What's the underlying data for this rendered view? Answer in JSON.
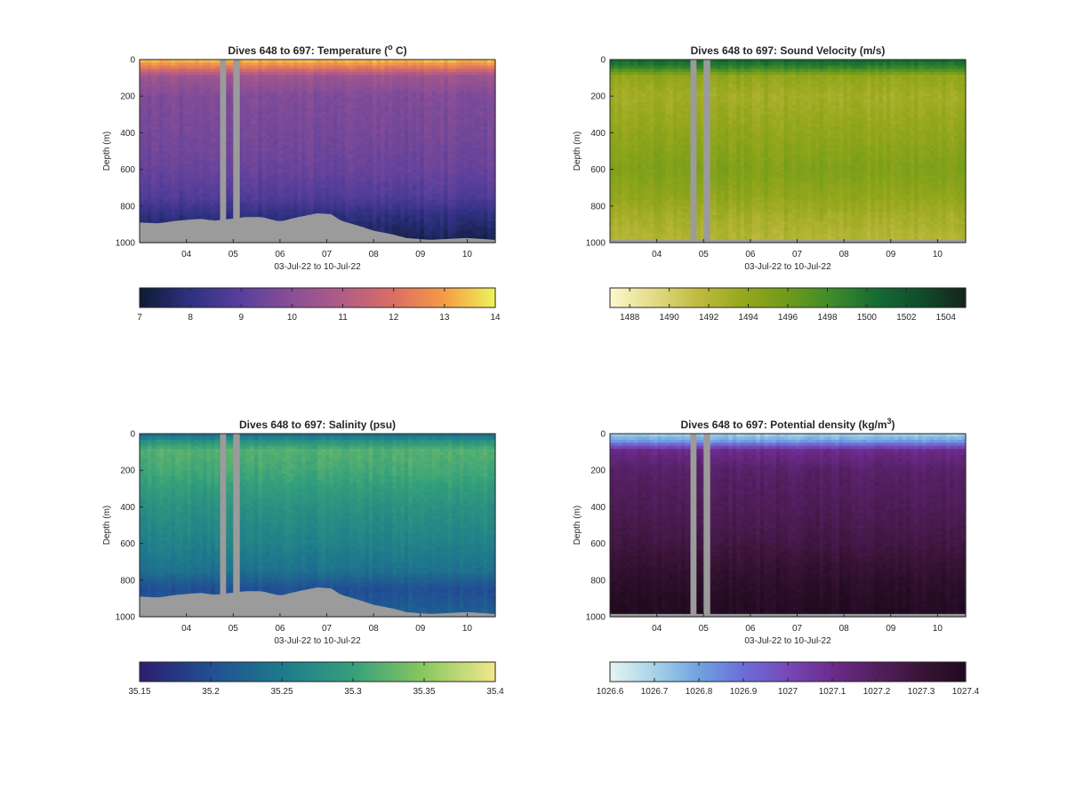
{
  "chart_data": [
    {
      "type": "heatmap",
      "title": "Dives 648 to 697: Temperature (",
      "title_sup": "o",
      "title_tail": " C)",
      "xlabel": "03-Jul-22 to 10-Jul-22",
      "ylabel": "Depth (m)",
      "x_ticks": [
        "04",
        "05",
        "06",
        "07",
        "08",
        "09",
        "10"
      ],
      "x_range": [
        3.0,
        10.6
      ],
      "y_ticks": [
        "0",
        "200",
        "400",
        "600",
        "800",
        "1000"
      ],
      "ylim": [
        0,
        1000
      ],
      "y_reversed": true,
      "gaps_x": [
        [
          4.72,
          4.85
        ],
        [
          5.0,
          5.14
        ]
      ],
      "bottom_depth": [
        [
          3.0,
          890
        ],
        [
          3.4,
          895
        ],
        [
          3.8,
          880
        ],
        [
          4.3,
          870
        ],
        [
          4.6,
          880
        ],
        [
          5.3,
          860
        ],
        [
          5.6,
          860
        ],
        [
          6.0,
          885
        ],
        [
          6.4,
          860
        ],
        [
          6.8,
          840
        ],
        [
          7.1,
          845
        ],
        [
          7.3,
          880
        ],
        [
          7.7,
          910
        ],
        [
          8.0,
          935
        ],
        [
          8.4,
          955
        ],
        [
          8.7,
          975
        ],
        [
          9.2,
          985
        ],
        [
          9.6,
          980
        ],
        [
          10.0,
          975
        ],
        [
          10.6,
          985
        ]
      ],
      "colorbar": {
        "ticks": [
          "7",
          "8",
          "9",
          "10",
          "11",
          "12",
          "13",
          "14"
        ],
        "range": [
          7,
          14
        ],
        "colors": [
          "#0d1b33",
          "#2f3182",
          "#5a3f9c",
          "#8a4f96",
          "#b25c86",
          "#db6e63",
          "#f59c45",
          "#eef45c"
        ]
      },
      "profile": [
        [
          0,
          13.5
        ],
        [
          40,
          12.4
        ],
        [
          90,
          10.5
        ],
        [
          200,
          9.8
        ],
        [
          400,
          9.6
        ],
        [
          600,
          9.3
        ],
        [
          750,
          8.8
        ],
        [
          850,
          8.0
        ],
        [
          1000,
          7.3
        ]
      ]
    },
    {
      "type": "heatmap",
      "title": "Dives 648 to 697: Sound Velocity (m/s)",
      "xlabel": "03-Jul-22 to 10-Jul-22",
      "ylabel": "Depth (m)",
      "x_ticks": [
        "04",
        "05",
        "06",
        "07",
        "08",
        "09",
        "10"
      ],
      "x_range": [
        3.0,
        10.6
      ],
      "y_ticks": [
        "0",
        "200",
        "400",
        "600",
        "800",
        "1000"
      ],
      "ylim": [
        0,
        1000
      ],
      "y_reversed": true,
      "gaps_x": [
        [
          4.72,
          4.85
        ],
        [
          5.0,
          5.14
        ]
      ],
      "bottom_depth": [
        [
          3.0,
          985
        ],
        [
          10.6,
          985
        ]
      ],
      "colorbar": {
        "ticks": [
          "1488",
          "1490",
          "1492",
          "1494",
          "1496",
          "1498",
          "1500",
          "1502",
          "1504"
        ],
        "range": [
          1487,
          1505
        ],
        "colors": [
          "#fdf8cf",
          "#e2da84",
          "#bfba40",
          "#96a71c",
          "#6e9b1a",
          "#3d8a2a",
          "#166b33",
          "#0f4d2a",
          "#14241a"
        ]
      },
      "profile": [
        [
          0,
          1501
        ],
        [
          40,
          1499
        ],
        [
          90,
          1494
        ],
        [
          200,
          1493
        ],
        [
          400,
          1494
        ],
        [
          600,
          1495
        ],
        [
          750,
          1494
        ],
        [
          850,
          1493
        ],
        [
          1000,
          1492
        ]
      ]
    },
    {
      "type": "heatmap",
      "title": "Dives 648 to 697: Salinity (psu)",
      "xlabel": "03-Jul-22 to 10-Jul-22",
      "ylabel": "Depth (m)",
      "x_ticks": [
        "04",
        "05",
        "06",
        "07",
        "08",
        "09",
        "10"
      ],
      "x_range": [
        3.0,
        10.6
      ],
      "y_ticks": [
        "0",
        "200",
        "400",
        "600",
        "800",
        "1000"
      ],
      "ylim": [
        0,
        1000
      ],
      "y_reversed": true,
      "gaps_x": [
        [
          4.72,
          4.85
        ],
        [
          5.0,
          5.14
        ]
      ],
      "bottom_depth": [
        [
          3.0,
          890
        ],
        [
          3.4,
          895
        ],
        [
          3.8,
          880
        ],
        [
          4.3,
          870
        ],
        [
          4.6,
          880
        ],
        [
          5.3,
          860
        ],
        [
          5.6,
          860
        ],
        [
          6.0,
          885
        ],
        [
          6.4,
          860
        ],
        [
          6.8,
          840
        ],
        [
          7.1,
          845
        ],
        [
          7.3,
          880
        ],
        [
          7.7,
          910
        ],
        [
          8.0,
          935
        ],
        [
          8.4,
          955
        ],
        [
          8.7,
          975
        ],
        [
          9.2,
          985
        ],
        [
          9.6,
          980
        ],
        [
          10.0,
          975
        ],
        [
          10.6,
          985
        ]
      ],
      "colorbar": {
        "ticks": [
          "35.15",
          "35.2",
          "35.25",
          "35.3",
          "35.35",
          "35.4"
        ],
        "range": [
          35.15,
          35.4
        ],
        "colors": [
          "#2d1d6e",
          "#214f94",
          "#1e7a8c",
          "#35a07b",
          "#8ac760",
          "#f3e88c"
        ]
      },
      "profile": [
        [
          0,
          35.23
        ],
        [
          40,
          35.28
        ],
        [
          90,
          35.32
        ],
        [
          200,
          35.31
        ],
        [
          400,
          35.28
        ],
        [
          600,
          35.26
        ],
        [
          750,
          35.24
        ],
        [
          850,
          35.2
        ],
        [
          1000,
          35.22
        ]
      ]
    },
    {
      "type": "heatmap",
      "title": "Dives 648 to 697: Potential density (kg/m",
      "title_sup": "3",
      "title_tail": ")",
      "xlabel": "03-Jul-22 to 10-Jul-22",
      "ylabel": "Depth (m)",
      "x_ticks": [
        "04",
        "05",
        "06",
        "07",
        "08",
        "09",
        "10"
      ],
      "x_range": [
        3.0,
        10.6
      ],
      "y_ticks": [
        "0",
        "200",
        "400",
        "600",
        "800",
        "1000"
      ],
      "ylim": [
        0,
        1000
      ],
      "y_reversed": true,
      "gaps_x": [
        [
          4.72,
          4.85
        ],
        [
          5.0,
          5.14
        ]
      ],
      "bottom_depth": [
        [
          3.0,
          985
        ],
        [
          10.6,
          985
        ]
      ],
      "colorbar": {
        "ticks": [
          "1026.6",
          "1026.7",
          "1026.8",
          "1026.9",
          "1027",
          "1027.1",
          "1027.2",
          "1027.3",
          "1027.4"
        ],
        "range": [
          1026.6,
          1027.4
        ],
        "colors": [
          "#e6f4f4",
          "#a6d3e8",
          "#6fa2e0",
          "#6b6ed9",
          "#7649b8",
          "#6b2b8a",
          "#531f5f",
          "#3a1437",
          "#1f0a1e"
        ]
      },
      "profile": [
        [
          0,
          1026.7
        ],
        [
          40,
          1026.8
        ],
        [
          90,
          1027.1
        ],
        [
          200,
          1027.18
        ],
        [
          400,
          1027.22
        ],
        [
          600,
          1027.27
        ],
        [
          750,
          1027.33
        ],
        [
          850,
          1027.36
        ],
        [
          1000,
          1027.39
        ]
      ]
    }
  ],
  "colors": {
    "gap_fill": "#9b9b9b",
    "axis": "#262626"
  }
}
